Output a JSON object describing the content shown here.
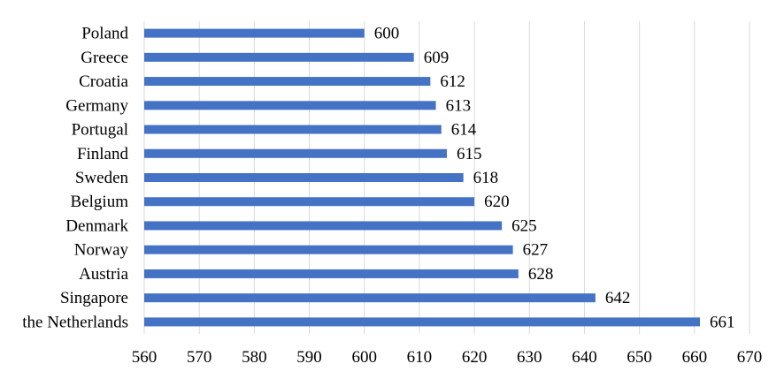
{
  "chart_data": {
    "type": "bar",
    "orientation": "horizontal",
    "categories": [
      "Poland",
      "Greece",
      "Croatia",
      "Germany",
      "Portugal",
      "Finland",
      "Sweden",
      "Belgium",
      "Denmark",
      "Norway",
      "Austria",
      "Singapore",
      "the Netherlands"
    ],
    "values": [
      600,
      609,
      612,
      613,
      614,
      615,
      618,
      620,
      625,
      627,
      628,
      642,
      661
    ],
    "xlim": [
      560,
      670
    ],
    "xticks": [
      560,
      570,
      580,
      590,
      600,
      610,
      620,
      630,
      640,
      650,
      660,
      670
    ],
    "grid": true,
    "bar_color": "#4472c4",
    "data_labels": true
  }
}
